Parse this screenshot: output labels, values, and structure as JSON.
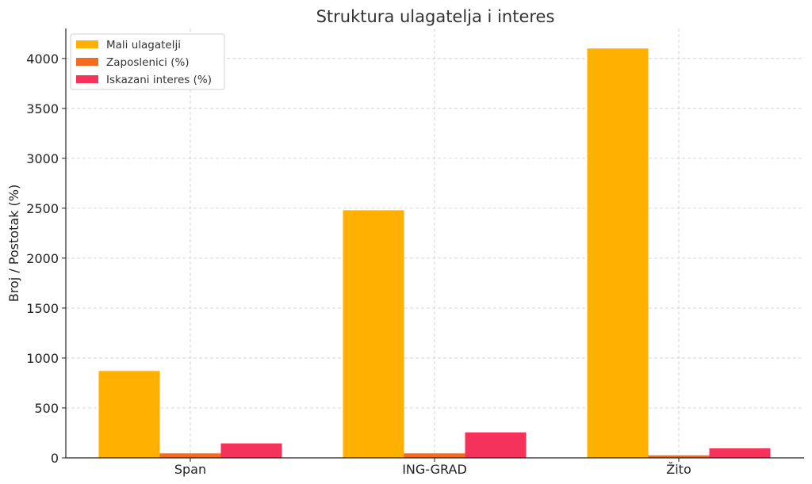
{
  "chart_data": {
    "type": "bar",
    "title": "Struktura ulagatelja i interes",
    "xlabel": "",
    "ylabel": "Broj / Postotak (%)",
    "categories": [
      "Span",
      "ING-GRAD",
      "Žito"
    ],
    "series": [
      {
        "name": "Mali ulagatelji",
        "color": "#FFB000",
        "values": [
          870,
          2480,
          4100
        ]
      },
      {
        "name": "Zaposlenici (%)",
        "color": "#F26B21",
        "values": [
          45,
          45,
          25
        ]
      },
      {
        "name": "Iskazani interes (%)",
        "color": "#F5325A",
        "values": [
          145,
          255,
          95
        ]
      }
    ],
    "ylim": [
      0,
      4300
    ],
    "yticks": [
      0,
      500,
      1000,
      1500,
      2000,
      2500,
      3000,
      3500,
      4000
    ],
    "grid": true,
    "legend": "top-left"
  }
}
